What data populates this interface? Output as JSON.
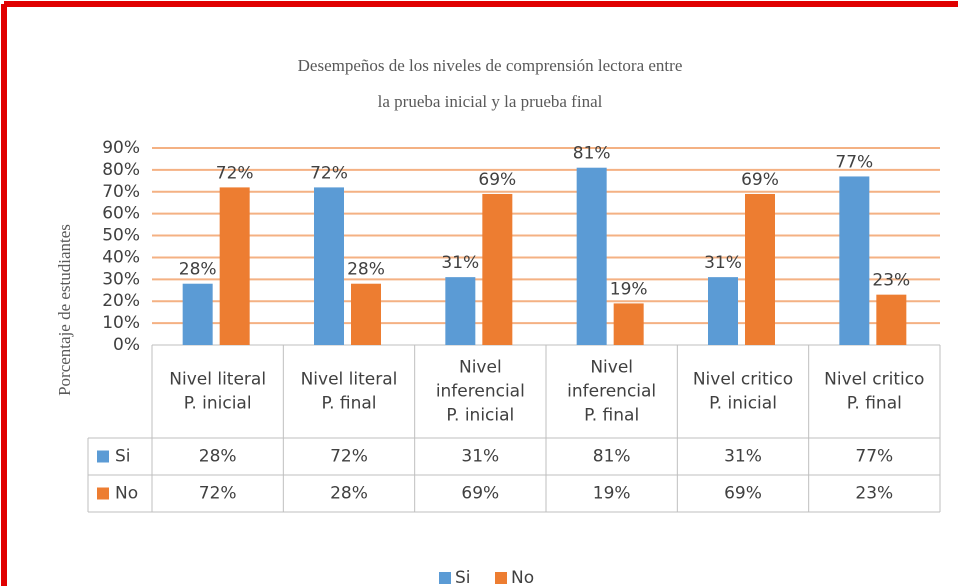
{
  "chart_data": {
    "type": "bar",
    "title": [
      "Desempeños de los niveles de comprensión lectora entre",
      "la prueba inicial y la prueba final"
    ],
    "y_label": "Porcentaje de estudiantes",
    "categories": [
      [
        "Nivel literal",
        "P. inicial"
      ],
      [
        "Nivel literal",
        "P. final"
      ],
      [
        "Nivel",
        "inferencial",
        "P. inicial"
      ],
      [
        "Nivel",
        "inferencial",
        "P. final"
      ],
      [
        "Nivel critico",
        "P. inicial"
      ],
      [
        "Nivel critico",
        "P. final"
      ]
    ],
    "series": [
      {
        "name": "Si",
        "color": "#5b9bd5",
        "values": [
          28,
          72,
          31,
          81,
          31,
          77
        ],
        "value_labels": [
          "28%",
          "72%",
          "31%",
          "81%",
          "31%",
          "77%"
        ]
      },
      {
        "name": "No",
        "color": "#ed7d31",
        "values": [
          72,
          28,
          69,
          19,
          69,
          23
        ],
        "value_labels": [
          "72%",
          "28%",
          "69%",
          "19%",
          "69%",
          "23%"
        ]
      }
    ],
    "ylim": [
      0,
      90
    ],
    "yticks": [
      {
        "value": 0,
        "label": "0%"
      },
      {
        "value": 10,
        "label": "10%"
      },
      {
        "value": 20,
        "label": "20%"
      },
      {
        "value": 30,
        "label": "30%"
      },
      {
        "value": 40,
        "label": "40%"
      },
      {
        "value": 50,
        "label": "50%"
      },
      {
        "value": 60,
        "label": "60%"
      },
      {
        "value": 70,
        "label": "70%"
      },
      {
        "value": 80,
        "label": "80%"
      },
      {
        "value": 90,
        "label": "90%"
      }
    ],
    "grid": true,
    "grid_color": "#f4b183"
  }
}
